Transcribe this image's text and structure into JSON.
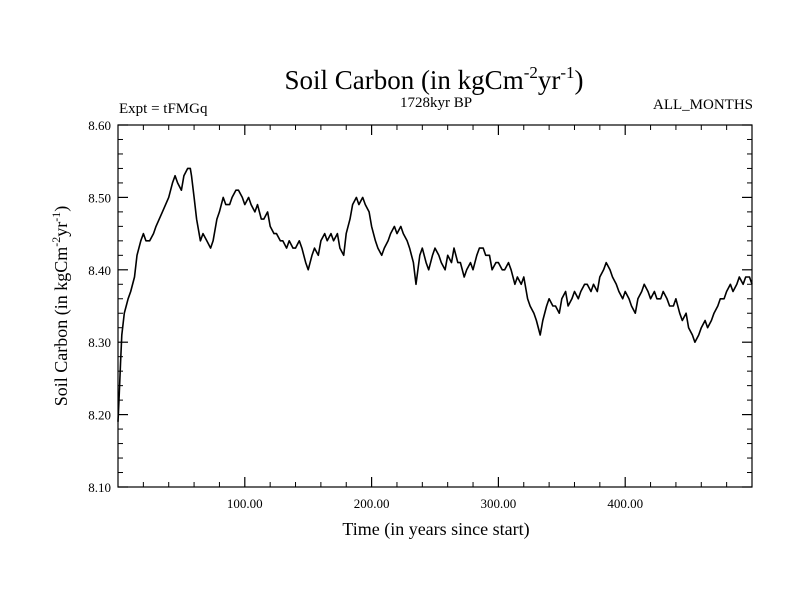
{
  "header": {
    "title_main": "Soil Carbon (in kgCm",
    "title_exp1": "-2",
    "title_mid": "yr",
    "title_exp2": "-1",
    "title_end": ")",
    "left_label": "Expt = tFMGq",
    "center_label": "1728kyr BP",
    "right_label": "ALL_MONTHS"
  },
  "chart_data": {
    "type": "line",
    "xlabel": "Time (in years since start)",
    "ylabel_parts": [
      "Soil Carbon (in kgCm",
      "-2",
      "yr",
      "-1",
      ")"
    ],
    "xlim": [
      0,
      500
    ],
    "ylim": [
      8.1,
      8.6
    ],
    "x_ticks": [
      100,
      200,
      300,
      400
    ],
    "x_tick_labels": [
      "100.00",
      "200.00",
      "300.00",
      "400.00"
    ],
    "y_ticks": [
      8.1,
      8.2,
      8.3,
      8.4,
      8.5,
      8.6
    ],
    "y_tick_labels": [
      "8.10",
      "8.20",
      "8.30",
      "8.40",
      "8.50",
      "8.60"
    ],
    "series": [
      {
        "color": "#000000",
        "x": [
          0,
          1,
          2,
          3,
          5,
          8,
          10,
          13,
          15,
          18,
          20,
          22,
          25,
          28,
          30,
          35,
          40,
          43,
          45,
          47,
          50,
          52,
          55,
          57,
          58,
          60,
          62,
          65,
          67,
          70,
          73,
          75,
          78,
          80,
          83,
          85,
          88,
          90,
          93,
          95,
          98,
          100,
          103,
          105,
          108,
          110,
          113,
          115,
          118,
          120,
          123,
          125,
          128,
          130,
          133,
          135,
          138,
          140,
          143,
          145,
          148,
          150,
          153,
          155,
          158,
          160,
          163,
          165,
          168,
          170,
          173,
          175,
          178,
          180,
          183,
          185,
          188,
          190,
          193,
          195,
          198,
          200,
          203,
          205,
          208,
          210,
          213,
          215,
          218,
          220,
          223,
          225,
          228,
          230,
          233,
          235,
          238,
          240,
          243,
          245,
          248,
          250,
          253,
          255,
          258,
          260,
          263,
          265,
          268,
          270,
          273,
          275,
          278,
          280,
          283,
          285,
          288,
          290,
          293,
          295,
          298,
          300,
          303,
          305,
          308,
          310,
          313,
          315,
          318,
          320,
          323,
          325,
          328,
          330,
          333,
          335,
          338,
          340,
          343,
          345,
          348,
          350,
          353,
          355,
          358,
          360,
          363,
          365,
          368,
          370,
          373,
          375,
          378,
          380,
          383,
          385,
          388,
          390,
          393,
          395,
          398,
          400,
          403,
          405,
          408,
          410,
          413,
          415,
          418,
          420,
          423,
          425,
          428,
          430,
          433,
          435,
          438,
          440,
          443,
          445,
          448,
          450,
          453,
          455,
          458,
          460,
          463,
          465,
          468,
          470,
          473,
          475,
          478,
          480,
          483,
          485,
          488,
          490,
          493,
          495,
          498,
          500
        ],
        "y": [
          8.19,
          8.23,
          8.27,
          8.31,
          8.34,
          8.36,
          8.37,
          8.39,
          8.42,
          8.44,
          8.45,
          8.44,
          8.44,
          8.45,
          8.46,
          8.48,
          8.5,
          8.52,
          8.53,
          8.52,
          8.51,
          8.53,
          8.54,
          8.54,
          8.53,
          8.5,
          8.47,
          8.44,
          8.45,
          8.44,
          8.43,
          8.44,
          8.47,
          8.48,
          8.5,
          8.49,
          8.49,
          8.5,
          8.51,
          8.51,
          8.5,
          8.49,
          8.5,
          8.49,
          8.48,
          8.49,
          8.47,
          8.47,
          8.48,
          8.46,
          8.45,
          8.45,
          8.44,
          8.44,
          8.43,
          8.44,
          8.43,
          8.43,
          8.44,
          8.43,
          8.41,
          8.4,
          8.42,
          8.43,
          8.42,
          8.44,
          8.45,
          8.44,
          8.45,
          8.44,
          8.45,
          8.43,
          8.42,
          8.45,
          8.47,
          8.49,
          8.5,
          8.49,
          8.5,
          8.49,
          8.48,
          8.46,
          8.44,
          8.43,
          8.42,
          8.43,
          8.44,
          8.45,
          8.46,
          8.45,
          8.46,
          8.45,
          8.44,
          8.43,
          8.41,
          8.38,
          8.42,
          8.43,
          8.41,
          8.4,
          8.42,
          8.43,
          8.42,
          8.41,
          8.4,
          8.42,
          8.41,
          8.43,
          8.41,
          8.41,
          8.39,
          8.4,
          8.41,
          8.4,
          8.42,
          8.43,
          8.43,
          8.42,
          8.42,
          8.4,
          8.41,
          8.41,
          8.4,
          8.4,
          8.41,
          8.4,
          8.38,
          8.39,
          8.38,
          8.39,
          8.36,
          8.35,
          8.34,
          8.33,
          8.31,
          8.33,
          8.35,
          8.36,
          8.35,
          8.35,
          8.34,
          8.36,
          8.37,
          8.35,
          8.36,
          8.37,
          8.36,
          8.37,
          8.38,
          8.38,
          8.37,
          8.38,
          8.37,
          8.39,
          8.4,
          8.41,
          8.4,
          8.39,
          8.38,
          8.37,
          8.36,
          8.37,
          8.36,
          8.35,
          8.34,
          8.36,
          8.37,
          8.38,
          8.37,
          8.36,
          8.37,
          8.36,
          8.36,
          8.37,
          8.36,
          8.35,
          8.35,
          8.36,
          8.34,
          8.33,
          8.34,
          8.32,
          8.31,
          8.3,
          8.31,
          8.32,
          8.33,
          8.32,
          8.33,
          8.34,
          8.35,
          8.36,
          8.36,
          8.37,
          8.38,
          8.37,
          8.38,
          8.39,
          8.38,
          8.39,
          8.39,
          8.38
        ]
      }
    ]
  }
}
